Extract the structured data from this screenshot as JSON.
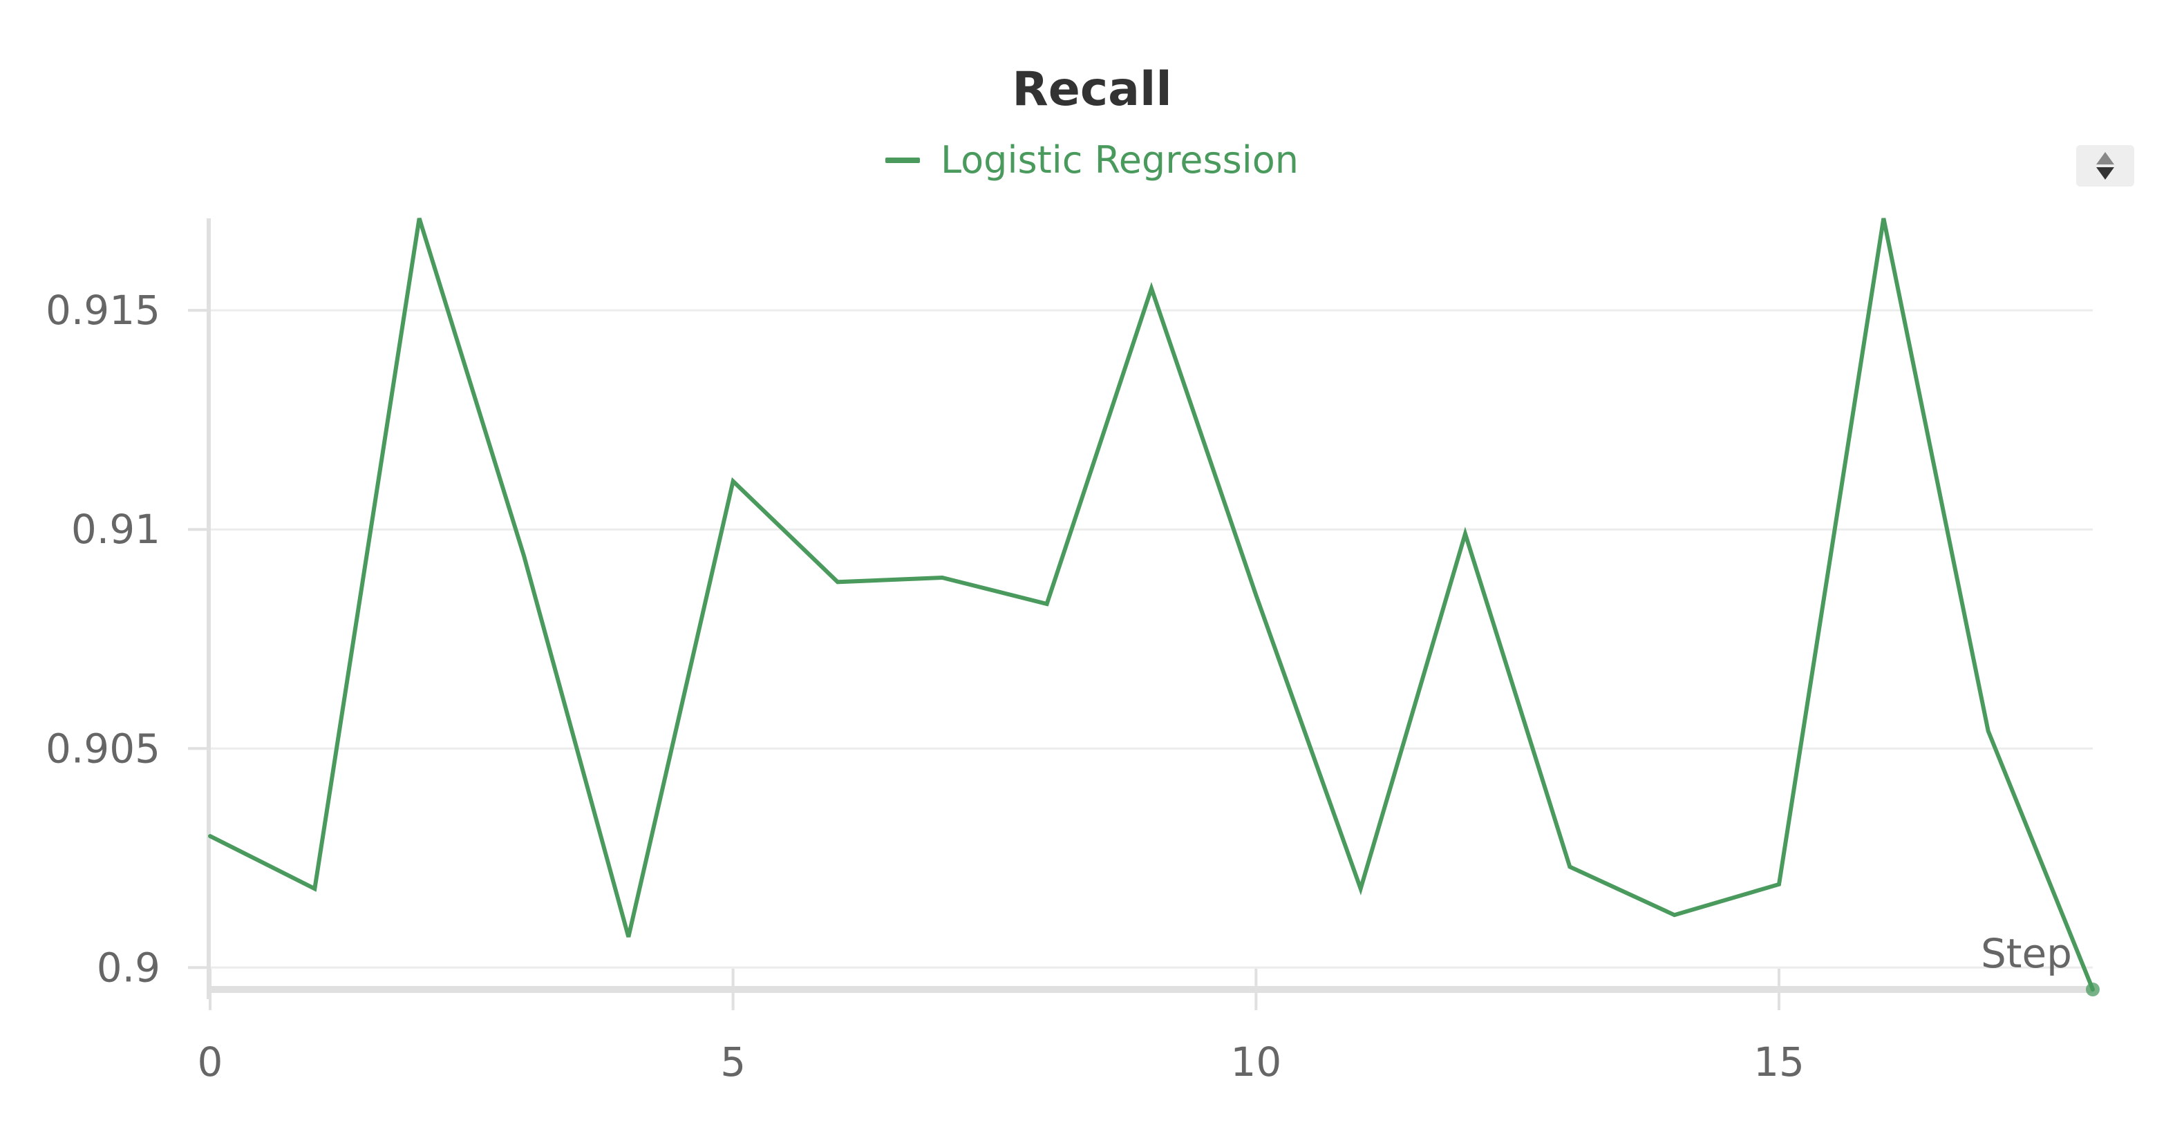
{
  "chart_data": {
    "type": "line",
    "title": "Recall",
    "xlabel": "Step",
    "ylabel": "",
    "x": [
      0,
      1,
      2,
      3,
      4,
      5,
      6,
      7,
      8,
      9,
      10,
      11,
      12,
      13,
      14,
      15,
      16,
      17,
      18
    ],
    "series": [
      {
        "name": "Logistic Regression",
        "color": "#4a9a5e",
        "values": [
          0.903,
          0.9018,
          0.9171,
          0.9094,
          0.9007,
          0.9111,
          0.9088,
          0.9089,
          0.9083,
          0.9155,
          0.9085,
          0.9018,
          0.9099,
          0.9023,
          0.9012,
          0.9019,
          0.9171,
          0.9054,
          0.8995
        ]
      }
    ],
    "xlim": [
      0,
      18
    ],
    "ylim": [
      0.8995,
      0.9171
    ],
    "x_ticks": [
      0,
      5,
      10,
      15
    ],
    "x_tick_labels": [
      "0",
      "5",
      "10",
      "15"
    ],
    "y_ticks": [
      0.9,
      0.905,
      0.91,
      0.915
    ],
    "y_tick_labels": [
      "0.9",
      "0.905",
      "0.91",
      "0.915"
    ],
    "grid": true,
    "legend_position": "top-center"
  },
  "colors": {
    "series": "#4a9a5e",
    "axis": "#e0e0e0",
    "grid": "#ececec",
    "tick_text": "#666666",
    "title_text": "#333333"
  },
  "icons": {
    "legend_toggle": "sort-up-down-icon"
  }
}
